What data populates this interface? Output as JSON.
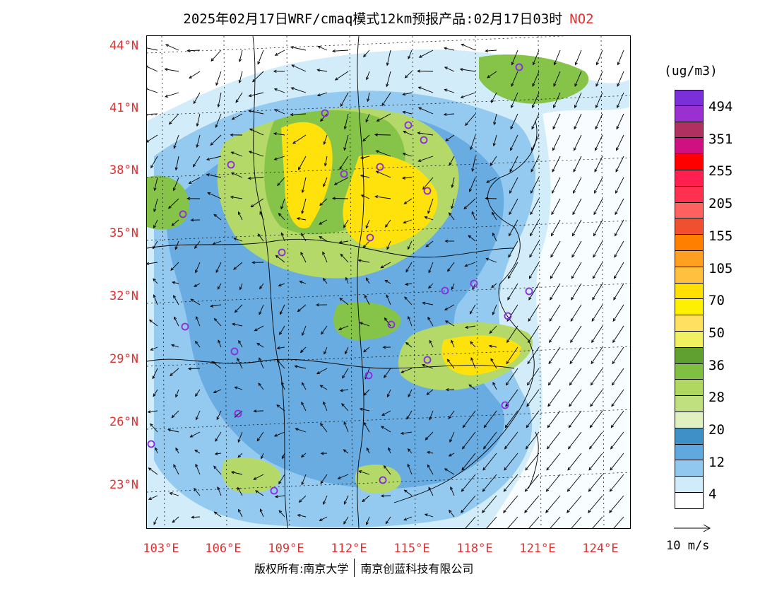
{
  "title": {
    "main": "2025年02月17日WRF/cmaq模式12km预报产品:02月17日03时",
    "species": "NO2"
  },
  "latitude_labels": [
    "44°N",
    "41°N",
    "38°N",
    "35°N",
    "32°N",
    "29°N",
    "26°N",
    "23°N"
  ],
  "longitude_labels": [
    "103°E",
    "106°E",
    "109°E",
    "112°E",
    "115°E",
    "118°E",
    "121°E",
    "124°E"
  ],
  "colorbar": {
    "unit": "(ug/m3)",
    "colors": [
      "#7b2fd8",
      "#9b30d0",
      "#b03060",
      "#d01080",
      "#ff0000",
      "#ff2050",
      "#ff3050",
      "#ff6060",
      "#f05030",
      "#ff8000",
      "#ffa020",
      "#ffc040",
      "#ffe000",
      "#fff000",
      "#ffe060",
      "#f0f060",
      "#60a030",
      "#80c040",
      "#b0d860",
      "#c0e080",
      "#e0f0c0",
      "#4090c8",
      "#60a8e0",
      "#90c8f0",
      "#d0ecfa",
      "#ffffff"
    ],
    "labels": [
      "494",
      "351",
      "255",
      "205",
      "155",
      "105",
      "70",
      "50",
      "36",
      "28",
      "20",
      "12",
      "4"
    ]
  },
  "wind_reference": "10 m/s",
  "copyright": {
    "left": "版权所有:南京大学",
    "right": "南京创蓝科技有限公司"
  }
}
